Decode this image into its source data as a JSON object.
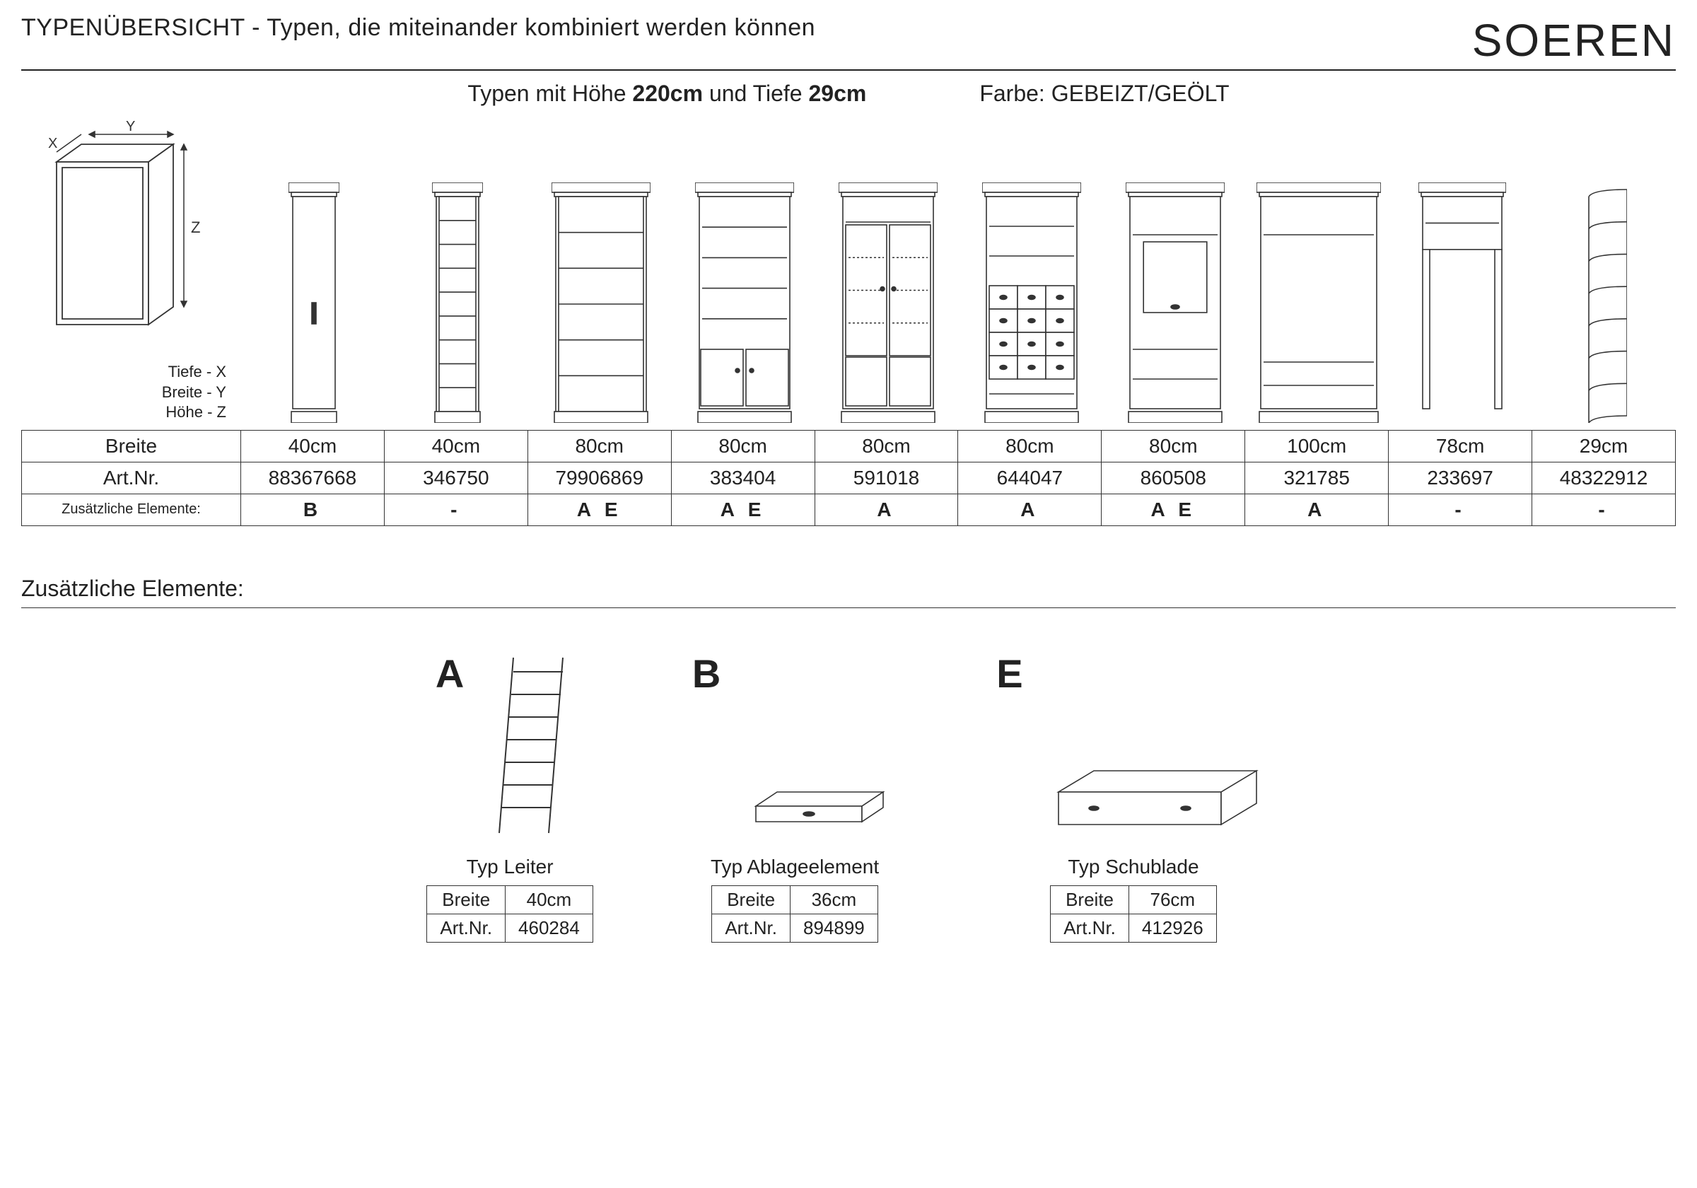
{
  "header": {
    "title": "TYPENÜBERSICHT - Typen, die miteinander kombiniert werden können",
    "brand": "SOEREN",
    "subhead_prefix": "Typen mit Höhe ",
    "subhead_height": "220cm",
    "subhead_middle": " und Tiefe ",
    "subhead_depth": "29cm",
    "color_label": "Farbe: ",
    "color_value": "GEBEIZT/GEÖLT"
  },
  "dim_legend": {
    "x": "Tiefe - X",
    "y": "Breite - Y",
    "z": "Höhe - Z"
  },
  "table": {
    "rows": {
      "breite_label": "Breite",
      "artnr_label": "Art.Nr.",
      "extra_label": "Zusätzliche Elemente:"
    },
    "cols": [
      {
        "breite": "40cm",
        "artnr": "88367668",
        "extra": "B",
        "width": 72,
        "type": "closed"
      },
      {
        "breite": "40cm",
        "artnr": "346750",
        "extra": "-",
        "width": 72,
        "type": "open-narrow"
      },
      {
        "breite": "80cm",
        "artnr": "79906869",
        "extra": "A E",
        "width": 140,
        "type": "open-wide"
      },
      {
        "breite": "80cm",
        "artnr": "383404",
        "extra": "A E",
        "width": 140,
        "type": "doors-bottom"
      },
      {
        "breite": "80cm",
        "artnr": "591018",
        "extra": "A",
        "width": 140,
        "type": "glass-doors"
      },
      {
        "breite": "80cm",
        "artnr": "644047",
        "extra": "A",
        "width": 140,
        "type": "drawers"
      },
      {
        "breite": "80cm",
        "artnr": "860508",
        "extra": "A E",
        "width": 140,
        "type": "tv-small"
      },
      {
        "breite": "100cm",
        "artnr": "321785",
        "extra": "A",
        "width": 176,
        "type": "tv-wide"
      },
      {
        "breite": "78cm",
        "artnr": "233697",
        "extra": "-",
        "width": 124,
        "type": "bridge"
      },
      {
        "breite": "29cm",
        "artnr": "48322912",
        "extra": "-",
        "width": 60,
        "type": "corner"
      }
    ]
  },
  "section2_title": "Zusätzliche Elemente:",
  "extras": [
    {
      "letter": "A",
      "label": "Typ Leiter",
      "breite_label": "Breite",
      "breite": "40cm",
      "artnr_label": "Art.Nr.",
      "artnr": "460284"
    },
    {
      "letter": "B",
      "label": "Typ Ablageelement",
      "breite_label": "Breite",
      "breite": "36cm",
      "artnr_label": "Art.Nr.",
      "artnr": "894899"
    },
    {
      "letter": "E",
      "label": "Typ Schublade",
      "breite_label": "Breite",
      "breite": "76cm",
      "artnr_label": "Art.Nr.",
      "artnr": "412926"
    }
  ],
  "style": {
    "stroke": "#333333",
    "fill": "#ffffff",
    "shelf_height": 340
  }
}
